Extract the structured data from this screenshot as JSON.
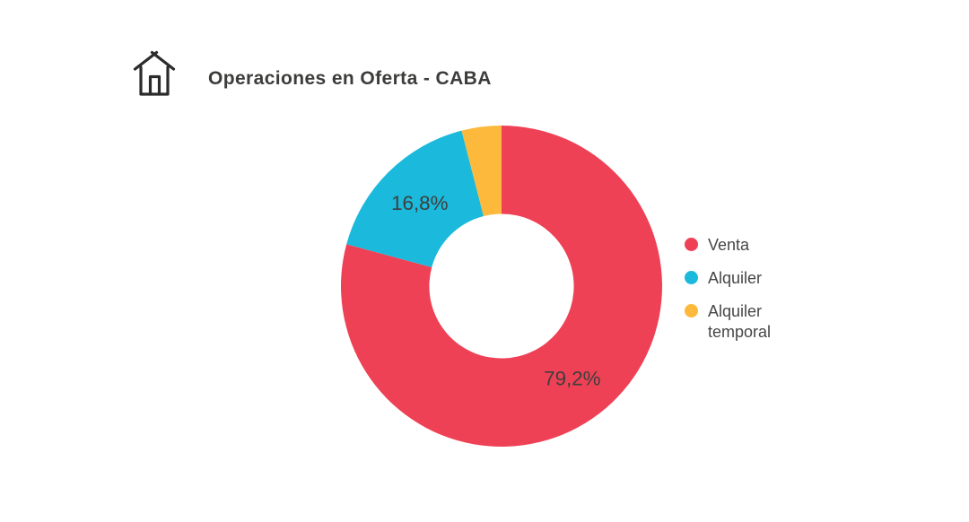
{
  "header": {
    "title": "Operaciones en Oferta - CABA",
    "icon": "house-icon"
  },
  "chart_data": {
    "type": "pie",
    "subtype": "donut",
    "title": "Operaciones en Oferta - CABA",
    "categories": [
      "Venta",
      "Alquiler",
      "Alquiler temporal"
    ],
    "values": [
      79.2,
      16.8,
      4
    ],
    "unit": "%",
    "data_labels": [
      "79,2%",
      "16,8%",
      ""
    ],
    "colors": [
      "#EF4155",
      "#1BB9DB",
      "#FCB93B"
    ],
    "start_angle_deg": 0,
    "direction": "clockwise",
    "inner_radius_ratio": 0.45,
    "legend_position": "right",
    "label_text_color": "#3e3e3e"
  }
}
